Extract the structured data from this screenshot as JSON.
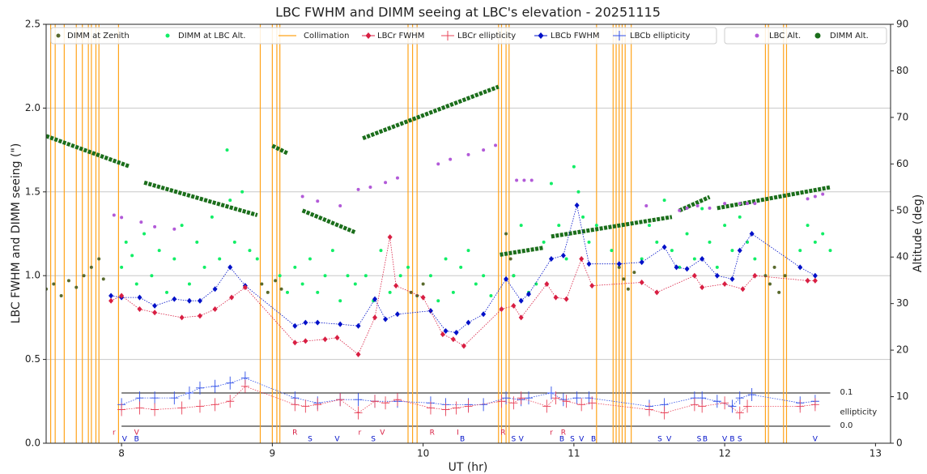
{
  "chart_data": {
    "type": "scatter",
    "title": "LBC FWHM and DIMM seeing at LBC's elevation - 20251115",
    "x_label": "UT (hr)",
    "y_label": "LBC FWHM and DIMM seeing (\")",
    "y2_label": "Altitude (deg)",
    "xlim": [
      7.5,
      13.1
    ],
    "xticks": [
      8,
      9,
      10,
      11,
      12,
      13
    ],
    "ylim": [
      0,
      2.5
    ],
    "yticks": [
      {
        "value": 0,
        "label": "0.0"
      },
      0.5,
      {
        "value": 1,
        "label": "1.0"
      },
      1.5,
      {
        "value": 2,
        "label": "2.0"
      },
      2.5
    ],
    "y2lim": [
      0,
      90
    ],
    "y2ticks": [
      0,
      10,
      20,
      30,
      40,
      50,
      60,
      70,
      80,
      90
    ],
    "grid": true,
    "ellipticity_label": "ellipticity",
    "ellipticity_ticks": [
      {
        "value": 0,
        "label": "0.0"
      },
      0.1
    ],
    "series": [
      {
        "name": "DIMM at Zenith",
        "color": "#59692c",
        "marker": "dot",
        "x": [
          7.5,
          7.55,
          7.6,
          7.65,
          7.7,
          7.75,
          7.8,
          7.85,
          7.88,
          8.93,
          8.97,
          9.02,
          9.06,
          9.92,
          9.96,
          10.0,
          10.55,
          10.58,
          10.6,
          11.3,
          11.33,
          11.36,
          11.4,
          12.27,
          12.3,
          12.33,
          12.36,
          12.4
        ],
        "values": [
          0.92,
          0.95,
          0.88,
          0.97,
          0.93,
          1.0,
          1.05,
          1.1,
          0.98,
          0.95,
          0.9,
          0.97,
          0.92,
          0.9,
          0.88,
          0.95,
          1.25,
          1.1,
          1.0,
          1.05,
          0.98,
          0.92,
          1.02,
          1.0,
          0.95,
          1.05,
          0.9,
          1.0
        ]
      },
      {
        "name": "DIMM at LBC Alt.",
        "color": "#11ee66",
        "marker": "dot",
        "x": [
          8.0,
          8.03,
          8.07,
          8.1,
          8.15,
          8.2,
          8.25,
          8.3,
          8.35,
          8.4,
          8.45,
          8.5,
          8.55,
          8.6,
          8.65,
          8.7,
          8.72,
          8.75,
          8.8,
          8.85,
          8.9,
          9.05,
          9.1,
          9.15,
          9.2,
          9.25,
          9.3,
          9.35,
          9.4,
          9.45,
          9.5,
          9.55,
          9.62,
          9.67,
          9.72,
          9.78,
          9.85,
          9.9,
          10.05,
          10.1,
          10.15,
          10.2,
          10.25,
          10.3,
          10.35,
          10.4,
          10.45,
          10.6,
          10.65,
          10.7,
          10.75,
          10.8,
          10.85,
          10.9,
          10.95,
          11.0,
          11.03,
          11.06,
          11.1,
          11.15,
          11.25,
          11.45,
          11.5,
          11.55,
          11.6,
          11.65,
          11.7,
          11.75,
          11.8,
          11.85,
          11.9,
          11.95,
          12.0,
          12.05,
          12.1,
          12.15,
          12.2,
          12.5,
          12.55,
          12.6,
          12.65,
          12.7
        ],
        "values": [
          1.05,
          1.2,
          1.12,
          0.95,
          1.25,
          1.0,
          1.15,
          0.9,
          1.1,
          1.3,
          0.95,
          1.2,
          1.05,
          1.35,
          1.1,
          1.75,
          1.45,
          1.2,
          1.5,
          1.15,
          1.1,
          1.0,
          0.9,
          1.05,
          0.95,
          1.1,
          0.9,
          1.0,
          1.15,
          0.85,
          1.0,
          0.95,
          1.0,
          0.85,
          1.15,
          0.9,
          1.0,
          1.05,
          1.0,
          0.85,
          1.1,
          0.9,
          1.05,
          1.15,
          0.95,
          1.0,
          0.88,
          1.0,
          1.3,
          0.9,
          0.95,
          1.2,
          1.55,
          1.3,
          1.1,
          1.65,
          1.5,
          1.35,
          1.2,
          1.3,
          1.15,
          1.1,
          1.3,
          1.2,
          1.45,
          1.15,
          1.05,
          1.25,
          1.1,
          1.4,
          1.2,
          1.05,
          1.3,
          1.15,
          1.35,
          1.2,
          1.1,
          1.15,
          1.3,
          1.2,
          1.25,
          1.15
        ]
      },
      {
        "name": "Collimation",
        "color": "#ffa31a",
        "marker": "vline",
        "x": [
          7.53,
          7.56,
          7.62,
          7.7,
          7.74,
          7.78,
          7.8,
          7.83,
          7.85,
          7.98,
          8.92,
          9.0,
          9.03,
          9.05,
          9.9,
          9.93,
          9.96,
          10.5,
          10.52,
          10.55,
          10.57,
          11.15,
          11.26,
          11.28,
          11.3,
          11.32,
          11.34,
          11.38,
          12.27,
          12.29,
          12.39,
          12.41
        ]
      },
      {
        "name": "LBCr FWHM",
        "color": "#d81e42",
        "marker": "diamond",
        "line": true,
        "x": [
          7.93,
          8.0,
          8.12,
          8.22,
          8.4,
          8.52,
          8.62,
          8.73,
          8.82,
          9.15,
          9.22,
          9.35,
          9.43,
          9.57,
          9.68,
          9.78,
          9.82,
          10.0,
          10.13,
          10.2,
          10.27,
          10.52,
          10.6,
          10.65,
          10.82,
          10.88,
          10.95,
          11.05,
          11.12,
          11.45,
          11.55,
          11.8,
          11.85,
          12.0,
          12.12,
          12.2,
          12.55,
          12.6
        ],
        "values": [
          0.85,
          0.88,
          0.8,
          0.78,
          0.75,
          0.76,
          0.8,
          0.87,
          0.93,
          0.6,
          0.61,
          0.62,
          0.63,
          0.53,
          0.75,
          1.23,
          0.94,
          0.87,
          0.65,
          0.62,
          0.58,
          0.8,
          0.82,
          0.75,
          0.95,
          0.87,
          0.86,
          1.1,
          0.94,
          0.96,
          0.9,
          1.0,
          0.93,
          0.95,
          0.92,
          1.0,
          0.97,
          0.97
        ]
      },
      {
        "name": "LBCr ellipticity",
        "color": "#e8445a",
        "marker": "plus",
        "line": true,
        "panel": "ellipticity",
        "x": [
          8.0,
          8.12,
          8.22,
          8.4,
          8.52,
          8.62,
          8.72,
          8.82,
          9.15,
          9.22,
          9.3,
          9.45,
          9.57,
          9.68,
          9.75,
          9.83,
          10.05,
          10.15,
          10.22,
          10.3,
          10.52,
          10.6,
          10.65,
          10.82,
          10.88,
          10.95,
          11.05,
          11.12,
          11.5,
          11.6,
          11.8,
          11.85,
          12.0,
          12.1,
          12.15,
          12.5,
          12.6
        ],
        "values": [
          0.05,
          0.055,
          0.05,
          0.055,
          0.06,
          0.065,
          0.075,
          0.12,
          0.065,
          0.06,
          0.065,
          0.08,
          0.04,
          0.075,
          0.07,
          0.08,
          0.055,
          0.05,
          0.055,
          0.06,
          0.075,
          0.07,
          0.085,
          0.06,
          0.085,
          0.075,
          0.065,
          0.07,
          0.05,
          0.04,
          0.065,
          0.06,
          0.07,
          0.04,
          0.06,
          0.06,
          0.065
        ]
      },
      {
        "name": "LBCb FWHM",
        "color": "#0010c8",
        "marker": "diamond",
        "line": true,
        "x": [
          7.93,
          8.0,
          8.12,
          8.22,
          8.35,
          8.45,
          8.52,
          8.62,
          8.72,
          8.82,
          9.15,
          9.22,
          9.3,
          9.45,
          9.57,
          9.68,
          9.75,
          9.83,
          10.05,
          10.15,
          10.22,
          10.3,
          10.4,
          10.55,
          10.65,
          10.7,
          10.85,
          10.93,
          11.02,
          11.1,
          11.3,
          11.45,
          11.6,
          11.68,
          11.75,
          11.85,
          11.95,
          12.05,
          12.1,
          12.18,
          12.5,
          12.6
        ],
        "values": [
          0.88,
          0.87,
          0.87,
          0.82,
          0.86,
          0.85,
          0.85,
          0.92,
          1.05,
          0.94,
          0.7,
          0.72,
          0.72,
          0.71,
          0.7,
          0.86,
          0.74,
          0.77,
          0.79,
          0.67,
          0.66,
          0.72,
          0.77,
          0.98,
          0.85,
          0.89,
          1.1,
          1.12,
          1.42,
          1.07,
          1.07,
          1.08,
          1.17,
          1.05,
          1.04,
          1.1,
          1.0,
          0.98,
          1.15,
          1.25,
          1.05,
          1.0
        ]
      },
      {
        "name": "LBCb ellipticity",
        "color": "#3050e8",
        "marker": "plus",
        "line": true,
        "panel": "ellipticity",
        "x": [
          8.0,
          8.12,
          8.22,
          8.35,
          8.45,
          8.52,
          8.62,
          8.72,
          8.82,
          9.15,
          9.3,
          9.45,
          9.57,
          9.68,
          9.83,
          10.05,
          10.15,
          10.3,
          10.4,
          10.55,
          10.65,
          10.7,
          10.85,
          10.93,
          11.02,
          11.1,
          11.5,
          11.6,
          11.8,
          11.85,
          11.95,
          12.05,
          12.1,
          12.18,
          12.5,
          12.6
        ],
        "values": [
          0.065,
          0.085,
          0.085,
          0.085,
          0.1,
          0.115,
          0.12,
          0.13,
          0.145,
          0.085,
          0.07,
          0.08,
          0.08,
          0.075,
          0.075,
          0.07,
          0.065,
          0.065,
          0.065,
          0.085,
          0.08,
          0.085,
          0.1,
          0.08,
          0.085,
          0.085,
          0.06,
          0.065,
          0.085,
          0.085,
          0.075,
          0.06,
          0.085,
          0.095,
          0.07,
          0.075
        ]
      },
      {
        "name": "LBC Alt.",
        "color": "#b25ad8",
        "marker": "dot",
        "axis": "y2",
        "x": [
          7.95,
          8.0,
          8.13,
          8.22,
          8.35,
          9.2,
          9.3,
          9.45,
          9.57,
          9.65,
          9.75,
          9.83,
          10.1,
          10.18,
          10.3,
          10.4,
          10.48,
          10.62,
          10.67,
          10.72,
          11.48,
          11.7,
          11.75,
          11.82,
          11.9,
          12.0,
          12.1,
          12.15,
          12.2,
          12.55,
          12.6,
          12.65
        ],
        "values": [
          49,
          48.5,
          47.5,
          46.5,
          46,
          53,
          52,
          51,
          54.5,
          55,
          56,
          57,
          60,
          61,
          62,
          63,
          64,
          56.5,
          56.5,
          56.5,
          51,
          50,
          50.5,
          51,
          50.5,
          51.5,
          51.5,
          51.5,
          51.5,
          52.5,
          53,
          53.5
        ]
      },
      {
        "name": "DIMM Alt.",
        "color": "#1b6e1b",
        "marker": "thick",
        "axis": "y2",
        "x": [
          7.5,
          8.05,
          8.1,
          8.15,
          8.9,
          8.95,
          9.0,
          9.1,
          9.15,
          9.2,
          9.55,
          9.58,
          9.6,
          10.5,
          10.505,
          10.51,
          10.8,
          10.82,
          10.85,
          11.65,
          11.67,
          11.7,
          11.9,
          11.92,
          11.95,
          12.7
        ],
        "values": [
          66,
          59.5,
          null,
          56,
          49,
          null,
          63.9,
          62.3,
          null,
          50,
          45.3,
          null,
          65.5,
          76.6,
          null,
          40.5,
          42,
          null,
          44.4,
          48.6,
          null,
          50,
          52.9,
          null,
          50.5,
          55
        ]
      }
    ],
    "filter_labels": [
      {
        "x": 7.95,
        "text": "r",
        "row": "upper"
      },
      {
        "x": 8.1,
        "text": "V",
        "row": "upper"
      },
      {
        "x": 9.15,
        "text": "R",
        "row": "upper"
      },
      {
        "x": 9.58,
        "text": "r",
        "row": "upper"
      },
      {
        "x": 9.73,
        "text": "V",
        "row": "upper"
      },
      {
        "x": 10.06,
        "text": "R",
        "row": "upper"
      },
      {
        "x": 10.23,
        "text": "I",
        "row": "upper"
      },
      {
        "x": 10.53,
        "text": "R",
        "row": "upper"
      },
      {
        "x": 10.85,
        "text": "r",
        "row": "upper"
      },
      {
        "x": 10.93,
        "text": "R",
        "row": "upper"
      },
      {
        "x": 8.02,
        "text": "V",
        "row": "lower"
      },
      {
        "x": 8.1,
        "text": "B",
        "row": "lower"
      },
      {
        "x": 9.25,
        "text": "S",
        "row": "lower"
      },
      {
        "x": 9.43,
        "text": "V",
        "row": "lower"
      },
      {
        "x": 9.67,
        "text": "S",
        "row": "lower"
      },
      {
        "x": 10.26,
        "text": "B",
        "row": "lower"
      },
      {
        "x": 10.6,
        "text": "S",
        "row": "lower"
      },
      {
        "x": 10.65,
        "text": "V",
        "row": "lower"
      },
      {
        "x": 10.92,
        "text": "B",
        "row": "lower"
      },
      {
        "x": 10.99,
        "text": "S",
        "row": "lower"
      },
      {
        "x": 11.05,
        "text": "V",
        "row": "lower"
      },
      {
        "x": 11.13,
        "text": "B",
        "row": "lower"
      },
      {
        "x": 11.57,
        "text": "S",
        "row": "lower"
      },
      {
        "x": 11.63,
        "text": "V",
        "row": "lower"
      },
      {
        "x": 11.83,
        "text": "S",
        "row": "lower"
      },
      {
        "x": 11.87,
        "text": "B",
        "row": "lower"
      },
      {
        "x": 12.0,
        "text": "V",
        "row": "lower"
      },
      {
        "x": 12.05,
        "text": "B",
        "row": "lower"
      },
      {
        "x": 12.1,
        "text": "S",
        "row": "lower"
      },
      {
        "x": 12.6,
        "text": "V",
        "row": "lower"
      }
    ]
  }
}
